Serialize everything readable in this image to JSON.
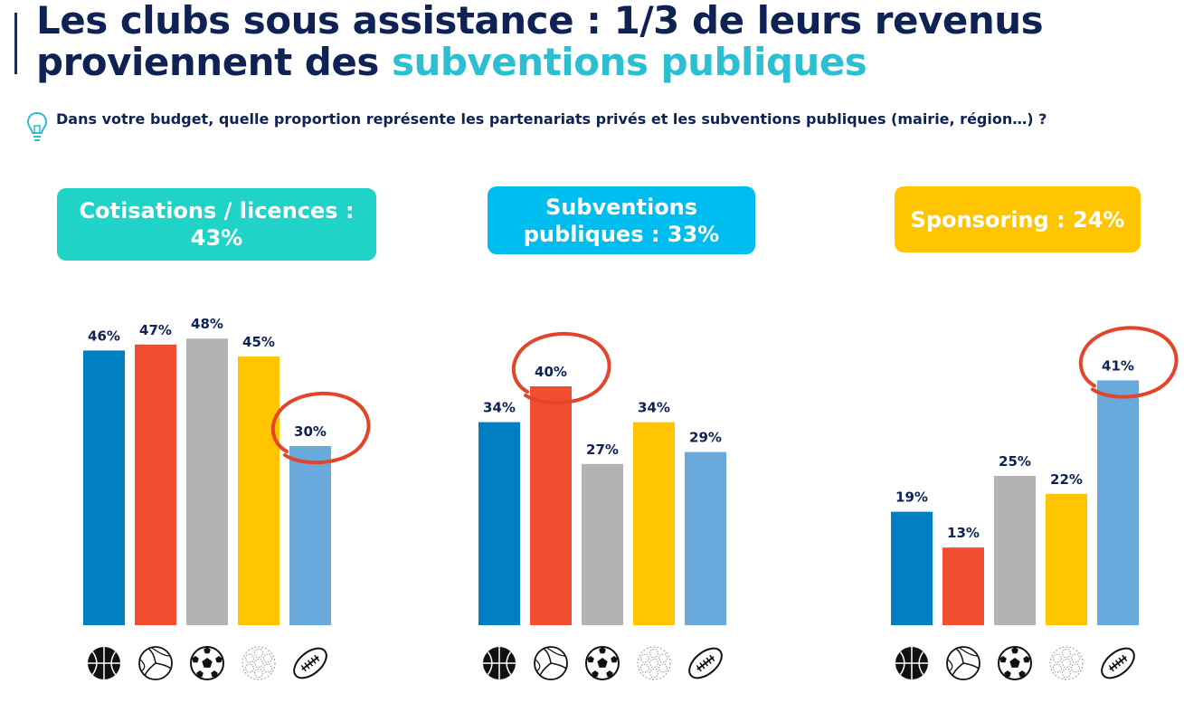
{
  "title": {
    "line1": "Les clubs sous assistance : 1/3 de leurs revenus",
    "line2_plain": "proviennent des ",
    "line2_highlight": "subventions publiques"
  },
  "question": "Dans votre budget, quelle proportion représente les partenariats privés et les subventions publiques (mairie, région…) ?",
  "colors": {
    "title": "#0e2254",
    "highlight": "#2bbfd1",
    "circle": "#e2452a"
  },
  "sports": [
    {
      "name": "basketball",
      "icon": "basketball-icon",
      "color": "#0080c2"
    },
    {
      "name": "volleyball",
      "icon": "volleyball-icon",
      "color": "#f24d2e"
    },
    {
      "name": "football",
      "icon": "soccer-ball-icon",
      "color": "#b3b3b3"
    },
    {
      "name": "handball",
      "icon": "handball-icon",
      "color": "#ffc600"
    },
    {
      "name": "rugby",
      "icon": "rugby-ball-icon",
      "color": "#6aa9db"
    }
  ],
  "chart_data": [
    {
      "type": "bar",
      "title": "Cotisations / licences : 43%",
      "badge_color": "#1fd3c7",
      "categories": [
        "basketball",
        "volleyball",
        "football",
        "handball",
        "rugby"
      ],
      "values": [
        46,
        47,
        48,
        45,
        30
      ],
      "labels": [
        "46%",
        "47%",
        "48%",
        "45%",
        "30%"
      ],
      "highlighted": 4,
      "ylim": [
        0,
        50
      ]
    },
    {
      "type": "bar",
      "title": "Subventions publiques : 33%",
      "badge_color": "#00bdf0",
      "categories": [
        "basketball",
        "volleyball",
        "football",
        "handball",
        "rugby"
      ],
      "values": [
        34,
        40,
        27,
        34,
        29
      ],
      "labels": [
        "34%",
        "40%",
        "27%",
        "34%",
        "29%"
      ],
      "highlighted": 1,
      "ylim": [
        0,
        50
      ]
    },
    {
      "type": "bar",
      "title": "Sponsoring : 24%",
      "badge_color": "#ffc600",
      "categories": [
        "basketball",
        "volleyball",
        "football",
        "handball",
        "rugby"
      ],
      "values": [
        19,
        13,
        25,
        22,
        41
      ],
      "labels": [
        "19%",
        "13%",
        "25%",
        "22%",
        "41%"
      ],
      "highlighted": 4,
      "ylim": [
        0,
        50
      ]
    }
  ]
}
